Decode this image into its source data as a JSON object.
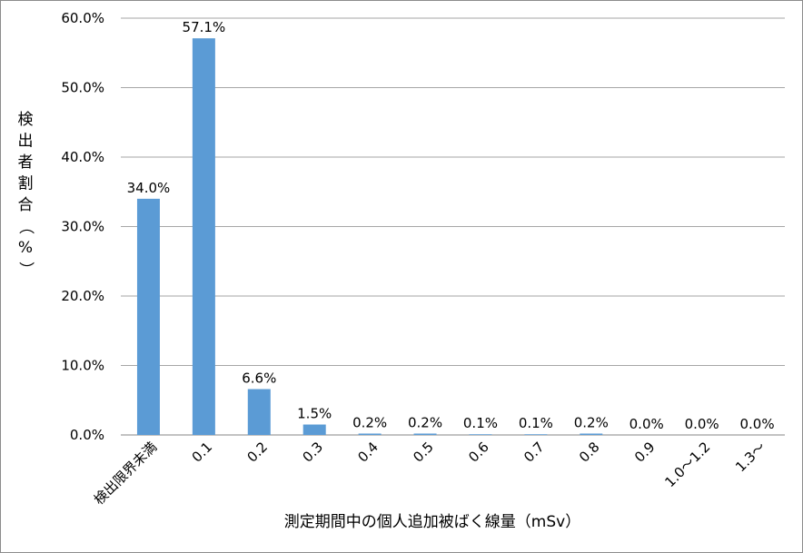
{
  "chart_data": {
    "type": "bar",
    "title": "",
    "xlabel": "測定期間中の個人追加被ばく線量（mSv）",
    "ylabel": "検出者割合（%）",
    "ylim": [
      0,
      60
    ],
    "y_ticks": [
      "0.0%",
      "10.0%",
      "20.0%",
      "30.0%",
      "40.0%",
      "50.0%",
      "60.0%"
    ],
    "categories": [
      "検出限界未満",
      "0.1",
      "0.2",
      "0.3",
      "0.4",
      "0.5",
      "0.6",
      "0.7",
      "0.8",
      "0.9",
      "1.0～1.2",
      "1.3～"
    ],
    "values": [
      34.0,
      57.1,
      6.6,
      1.5,
      0.2,
      0.2,
      0.1,
      0.1,
      0.2,
      0.0,
      0.0,
      0.0
    ],
    "data_labels": [
      "34.0%",
      "57.1%",
      "6.6%",
      "1.5%",
      "0.2%",
      "0.2%",
      "0.1%",
      "0.1%",
      "0.2%",
      "0.0%",
      "0.0%",
      "0.0%"
    ],
    "grid": true,
    "legend": "none",
    "bar_color": "#5b9bd5",
    "grid_color": "#a6a6a6"
  }
}
